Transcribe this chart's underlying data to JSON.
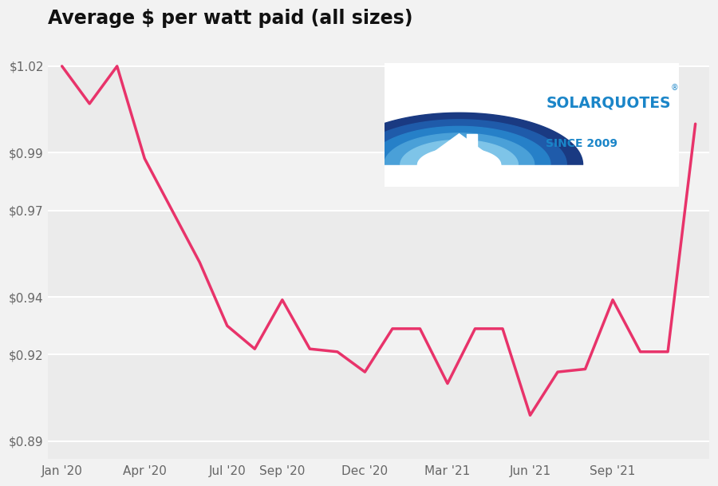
{
  "title": "Average $ per watt paid (all sizes)",
  "line_color": "#E8336A",
  "bg_color": "#f2f2f2",
  "title_color": "#111111",
  "line_width": 2.5,
  "tick_label_color": "#666666",
  "values": [
    1.02,
    1.007,
    1.02,
    0.988,
    0.97,
    0.952,
    0.93,
    0.922,
    0.939,
    0.922,
    0.921,
    0.914,
    0.929,
    0.929,
    0.91,
    0.929,
    0.929,
    0.899,
    0.914,
    0.915,
    0.939,
    0.921,
    0.921,
    1.0
  ],
  "x_ticks_labels": [
    "Jan '20",
    "Apr '20",
    "Jul '20",
    "Sep '20",
    "Dec '20",
    "Mar '21",
    "Jun '21",
    "Sep '21"
  ],
  "x_ticks_positions": [
    0,
    3,
    6,
    8,
    11,
    14,
    17,
    20
  ],
  "ylim": [
    0.884,
    1.03
  ],
  "yticks": [
    0.89,
    0.92,
    0.94,
    0.97,
    0.99,
    1.02
  ],
  "band_colors_alt": [
    "#ebebeb",
    "#f2f2f2"
  ],
  "white_line_color": "#ffffff",
  "logo_bg": "#ffffff",
  "sq_text_color": "#1a85c8",
  "sq_since_color": "#1a85c8"
}
